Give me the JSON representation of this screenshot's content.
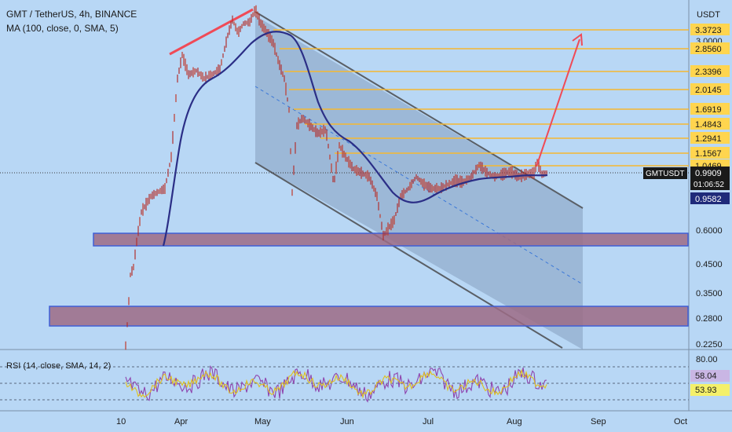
{
  "header": {
    "symbol_line": "GMT / TetherUS, 4h, BINANCE",
    "ma_label": "MA (100, close, 0, SMA, 5)"
  },
  "price_axis": {
    "unit": "USDT",
    "fib_labels": [
      "3.3723",
      "2.8560",
      "2.3396",
      "2.0145",
      "1.6919",
      "1.4843",
      "1.2941",
      "1.1567",
      "1.0469"
    ],
    "tick_labels": [
      "0.6000",
      "0.4500",
      "0.3500",
      "0.2800",
      "0.2250"
    ],
    "hidden_label": "3.0000",
    "symbol_tag": "GMTUSDT",
    "last_price": "0.9909",
    "countdown": "01:06:52",
    "ma_value": "0.9582"
  },
  "rsi": {
    "label": "RSI (14, close, SMA, 14, 2)",
    "axis_label": "80.00",
    "value": "58.04",
    "signal": "53.93"
  },
  "time_axis": {
    "labels": [
      "10",
      "Apr",
      "May",
      "Jun",
      "Jul",
      "Aug",
      "Sep",
      "Oct"
    ]
  },
  "colors": {
    "background": "#b8d7f5",
    "fib_line": "#f5b731",
    "fib_label_bg": "#ffd54f",
    "channel_fill": "#8ea8c6",
    "channel_line": "#5a5f66",
    "ma_line": "#2b2e86",
    "candle": "#c0392b",
    "zone_fill": "#9c6b85",
    "zone_border": "#3f5fd6",
    "arrow": "#f04a57",
    "rsi_line": "#8e44ad",
    "rsi_signal": "#e0c020",
    "ma_tag_bg": "#1f2a7a",
    "rsi_value_bg": "#c9b6e4",
    "rsi_signal_bg": "#f4f06a"
  },
  "icons": [
    "trend-arrow-icon"
  ]
}
